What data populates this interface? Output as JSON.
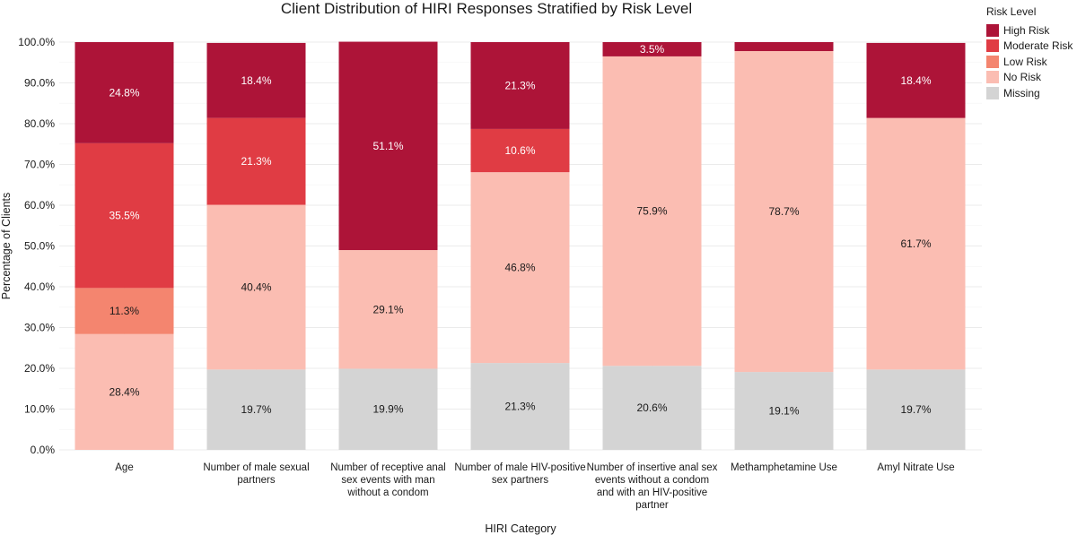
{
  "chart_data": {
    "type": "bar",
    "stacked": true,
    "title": "Client Distribution of HIRI Responses Stratified by Risk Level",
    "xlabel": "HIRI Category",
    "ylabel": "Percentage of Clients",
    "ylim": [
      0,
      100
    ],
    "y_ticks": [
      "0.0%",
      "10.0%",
      "20.0%",
      "30.0%",
      "40.0%",
      "50.0%",
      "60.0%",
      "70.0%",
      "80.0%",
      "90.0%",
      "100.0%"
    ],
    "categories": [
      [
        "Age"
      ],
      [
        "Number of male sexual",
        "partners"
      ],
      [
        "Number of receptive anal",
        "sex events with man",
        "without a condom"
      ],
      [
        "Number of male HIV-positive",
        "sex partners"
      ],
      [
        "Number of insertive anal sex",
        "events without a condom",
        "and with an HIV-positive",
        "partner"
      ],
      [
        "Methamphetamine Use"
      ],
      [
        "Amyl Nitrate Use"
      ]
    ],
    "series": [
      {
        "name": "Missing",
        "color": "#d4d4d4",
        "values": [
          0,
          19.7,
          19.9,
          21.3,
          20.6,
          19.1,
          19.7
        ],
        "labels": [
          "",
          "19.7%",
          "19.9%",
          "21.3%",
          "20.6%",
          "19.1%",
          "19.7%"
        ]
      },
      {
        "name": "No Risk",
        "color": "#fbbdb2",
        "values": [
          28.4,
          40.4,
          29.1,
          46.8,
          75.9,
          78.7,
          61.7
        ],
        "labels": [
          "28.4%",
          "40.4%",
          "29.1%",
          "46.8%",
          "75.9%",
          "78.7%",
          "61.7%"
        ]
      },
      {
        "name": "Low Risk",
        "color": "#f4856f",
        "values": [
          11.3,
          0,
          0,
          0,
          0,
          0,
          0
        ],
        "labels": [
          "11.3%",
          "",
          "",
          "",
          "",
          "",
          ""
        ]
      },
      {
        "name": "Moderate Risk",
        "color": "#e03c44",
        "values": [
          35.5,
          21.3,
          0,
          10.6,
          0,
          0,
          0
        ],
        "labels": [
          "35.5%",
          "21.3%",
          "",
          "10.6%",
          "",
          "",
          ""
        ]
      },
      {
        "name": "High Risk",
        "color": "#ad1438",
        "values": [
          24.8,
          18.4,
          51.1,
          21.3,
          3.5,
          2.2,
          18.4
        ],
        "labels": [
          "24.8%",
          "18.4%",
          "51.1%",
          "21.3%",
          "3.5%",
          "",
          "18.4%"
        ]
      }
    ],
    "legend": {
      "title": "Risk Level",
      "position": "right",
      "items": [
        {
          "name": "High Risk",
          "color": "#ad1438"
        },
        {
          "name": "Moderate Risk",
          "color": "#e03c44"
        },
        {
          "name": "Low Risk",
          "color": "#f4856f"
        },
        {
          "name": "No Risk",
          "color": "#fbbdb2"
        },
        {
          "name": "Missing",
          "color": "#d4d4d4"
        }
      ]
    },
    "grid": true
  }
}
